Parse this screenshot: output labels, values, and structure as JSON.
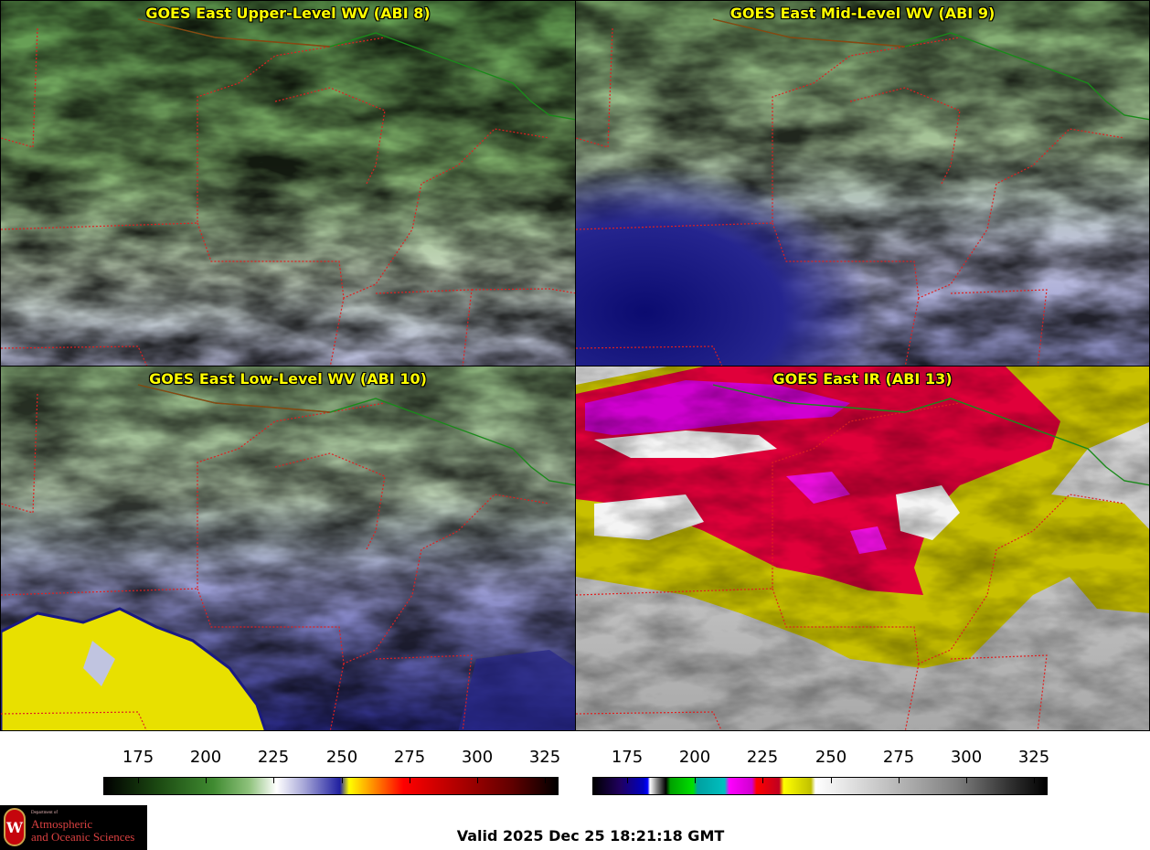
{
  "panels": [
    {
      "id": "p1",
      "title": "GOES East Upper-Level WV (ABI 8)",
      "palette": "upper"
    },
    {
      "id": "p2",
      "title": "GOES East Mid-Level WV (ABI 9)",
      "palette": "mid"
    },
    {
      "id": "p3",
      "title": "GOES East Low-Level WV (ABI 10)",
      "palette": "low"
    },
    {
      "id": "p4",
      "title": "GOES East IR (ABI 13)",
      "palette": "ir"
    }
  ],
  "colorbars": {
    "wv": {
      "ticks": [
        "175",
        "200",
        "225",
        "250",
        "275",
        "300",
        "325"
      ]
    },
    "ir": {
      "ticks": [
        "175",
        "200",
        "225",
        "250",
        "275",
        "300",
        "325"
      ]
    }
  },
  "colors": {
    "state_border": "#e02020",
    "country_border": "#1a8a1a",
    "coast": "#8b4513",
    "title_text": "#ffff00"
  },
  "logo": {
    "dept": "Department of",
    "line1": "Atmospheric",
    "line2": "and Oceanic Sciences",
    "seal_letter": "W"
  },
  "valid_time": "Valid 2025 Dec 25 18:21:18 GMT"
}
